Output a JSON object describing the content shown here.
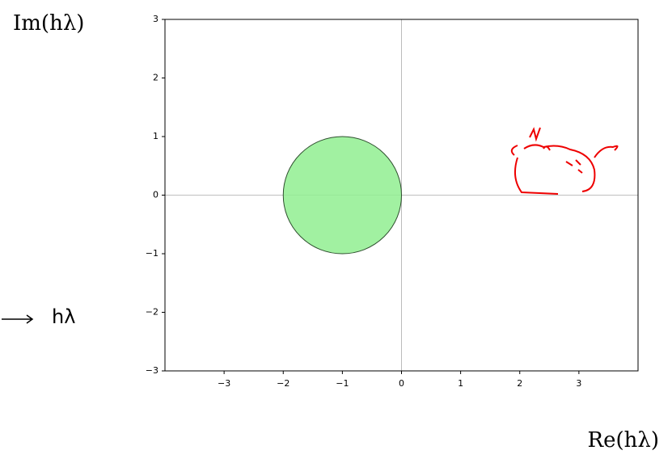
{
  "chart_data": {
    "type": "region",
    "y_label": "Im(hλ)",
    "x_label": "Re(hλ)",
    "annotation": "hλ",
    "circle": {
      "center": [
        -1,
        0
      ],
      "radius": 1,
      "color": "#90ee90",
      "edge_color": "#2f4f2f"
    },
    "xlim": [
      -4,
      4
    ],
    "ylim": [
      -3,
      3
    ],
    "xticks": [
      {
        "value": -3,
        "label": "−3"
      },
      {
        "value": -2,
        "label": "−2"
      },
      {
        "value": -1,
        "label": "−1"
      },
      0,
      1,
      2,
      3
    ],
    "yticks": [
      {
        "value": -3,
        "label": "−3"
      },
      {
        "value": -2,
        "label": "−2"
      },
      {
        "value": -1,
        "label": "−1"
      },
      0,
      1,
      2,
      3
    ],
    "axis_lines": true
  }
}
